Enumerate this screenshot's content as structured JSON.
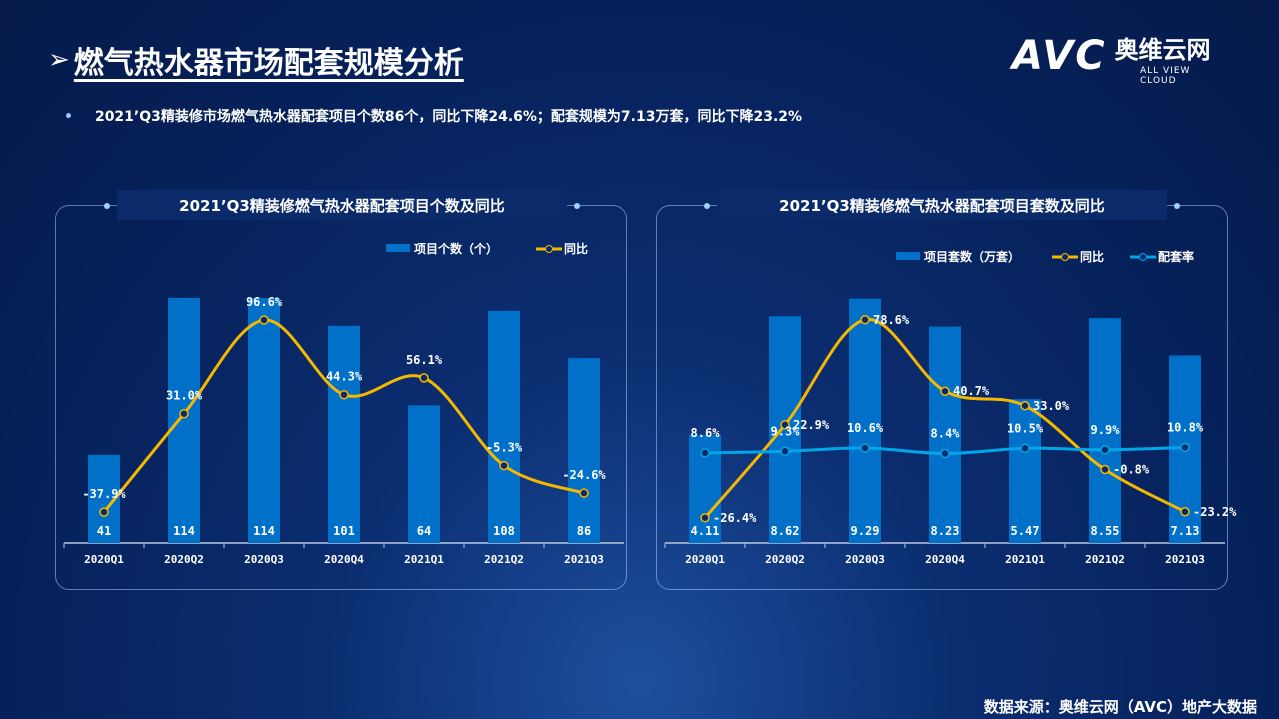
{
  "title": "燃气热水器市场配套规模分析",
  "logo": {
    "avc": "AVC",
    "cn": "奥维云网",
    "en": "ALL VIEW CLOUD"
  },
  "bullet": "2021’Q3精装修市场燃气热水器配套项目个数86个，同比下降24.6%；配套规模为7.13万套，同比下降23.2%",
  "source": "数据来源：奥维云网（AVC）地产大数据",
  "colors": {
    "bar": "#0070c8",
    "yoy": "#f5b800",
    "rate": "#00a6e8"
  },
  "chart_data": [
    {
      "type": "bar+line",
      "title": "2021’Q3精装修燃气热水器配套项目个数及同比",
      "categories": [
        "2020Q1",
        "2020Q2",
        "2020Q3",
        "2020Q4",
        "2021Q1",
        "2021Q2",
        "2021Q3"
      ],
      "series": [
        {
          "name": "项目个数（个）",
          "type": "bar",
          "values": [
            41,
            114,
            114,
            101,
            64,
            108,
            86
          ],
          "labels": [
            "41",
            "114",
            "114",
            "101",
            "64",
            "108",
            "86"
          ]
        },
        {
          "name": "同比",
          "type": "line",
          "values": [
            -37.9,
            31.0,
            96.6,
            44.3,
            56.1,
            -5.3,
            -24.6
          ],
          "labels": [
            "-37.9%",
            "31.0%",
            "96.6%",
            "44.3%",
            "56.1%",
            "-5.3%",
            "-24.6%"
          ]
        }
      ],
      "legend": "top-right"
    },
    {
      "type": "bar+line",
      "title": "2021’Q3精装修燃气热水器配套项目套数及同比",
      "categories": [
        "2020Q1",
        "2020Q2",
        "2020Q3",
        "2020Q4",
        "2021Q1",
        "2021Q2",
        "2021Q3"
      ],
      "series": [
        {
          "name": "项目套数（万套）",
          "type": "bar",
          "values": [
            4.11,
            8.62,
            9.29,
            8.23,
            5.47,
            8.55,
            7.13
          ],
          "labels": [
            "4.11",
            "8.62",
            "9.29",
            "8.23",
            "5.47",
            "8.55",
            "7.13"
          ]
        },
        {
          "name": "同比",
          "type": "line",
          "values": [
            -26.4,
            22.9,
            78.6,
            40.7,
            33.0,
            -0.8,
            -23.2
          ],
          "labels": [
            "-26.4%",
            "22.9%",
            "78.6%",
            "40.7%",
            "33.0%",
            "-0.8%",
            "-23.2%"
          ]
        },
        {
          "name": "配套率",
          "type": "line",
          "values": [
            8.6,
            9.3,
            10.6,
            8.4,
            10.5,
            9.9,
            10.8
          ],
          "labels": [
            "8.6%",
            "9.3%",
            "10.6%",
            "8.4%",
            "10.5%",
            "9.9%",
            "10.8%"
          ]
        }
      ],
      "legend": "top-right"
    }
  ]
}
